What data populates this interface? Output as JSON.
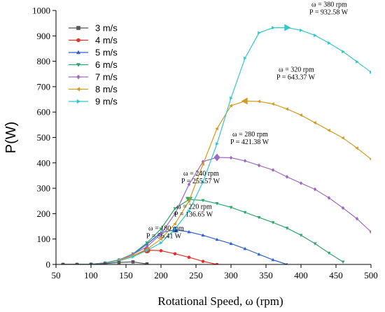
{
  "chart_data": {
    "type": "line",
    "xlabel": "Rotational Speed, ω (rpm)",
    "ylabel": "P(W)",
    "xlim": [
      50,
      500
    ],
    "ylim": [
      0,
      1000
    ],
    "xticks": [
      50,
      100,
      150,
      200,
      250,
      300,
      350,
      400,
      450,
      500
    ],
    "yticks": [
      0,
      100,
      200,
      300,
      400,
      500,
      600,
      700,
      800,
      900,
      1000
    ],
    "grid": false,
    "legend_position": "top-left",
    "series": [
      {
        "name": "3 m/s",
        "color": "#555555",
        "marker": "square",
        "x": [
          60,
          80,
          100,
          120,
          140,
          160,
          180
        ],
        "y": [
          0,
          0,
          0,
          3,
          8,
          10,
          2
        ]
      },
      {
        "name": "4 m/s",
        "color": "#e8302a",
        "marker": "circle",
        "x": [
          60,
          80,
          100,
          120,
          140,
          160,
          180,
          200,
          220,
          240,
          260,
          280
        ],
        "y": [
          0,
          0,
          1,
          5,
          15,
          35,
          56.41,
          54,
          42,
          28,
          12,
          0
        ]
      },
      {
        "name": "5 m/s",
        "color": "#2f63c7",
        "marker": "triangle-up",
        "x": [
          60,
          80,
          100,
          120,
          140,
          160,
          180,
          200,
          220,
          240,
          260,
          280,
          300,
          320,
          340,
          360,
          380
        ],
        "y": [
          0,
          0,
          1,
          6,
          18,
          40,
          80,
          125,
          136.65,
          128,
          115,
          98,
          82,
          62,
          40,
          18,
          0
        ]
      },
      {
        "name": "6 m/s",
        "color": "#2ea86a",
        "marker": "triangle-down",
        "x": [
          60,
          80,
          100,
          120,
          140,
          160,
          180,
          200,
          220,
          240,
          260,
          280,
          300,
          320,
          340,
          360,
          380,
          400,
          420,
          440,
          460
        ],
        "y": [
          0,
          0,
          1,
          6,
          18,
          42,
          85,
          140,
          220,
          255.57,
          252,
          240,
          225,
          205,
          185,
          165,
          143,
          115,
          82,
          45,
          10
        ]
      },
      {
        "name": "7 m/s",
        "color": "#9e6bc0",
        "marker": "diamond",
        "x": [
          60,
          80,
          100,
          120,
          140,
          160,
          180,
          200,
          220,
          240,
          260,
          280,
          300,
          320,
          340,
          360,
          380,
          400,
          420,
          440,
          460,
          480,
          500
        ],
        "y": [
          0,
          0,
          1,
          6,
          18,
          40,
          70,
          120,
          200,
          315,
          405,
          421.38,
          420,
          408,
          390,
          372,
          345,
          320,
          296,
          262,
          222,
          180,
          128
        ]
      },
      {
        "name": "8 m/s",
        "color": "#d69a1e",
        "marker": "triangle-left",
        "x": [
          60,
          80,
          100,
          120,
          140,
          160,
          180,
          200,
          220,
          240,
          260,
          280,
          300,
          320,
          340,
          360,
          380,
          400,
          420,
          440,
          460,
          480,
          500
        ],
        "y": [
          0,
          0,
          1,
          5,
          16,
          35,
          60,
          100,
          160,
          250,
          395,
          535,
          625,
          643.37,
          642,
          632,
          612,
          588,
          558,
          528,
          498,
          458,
          415
        ]
      },
      {
        "name": "9 m/s",
        "color": "#35c6c8",
        "marker": "triangle-right",
        "x": [
          60,
          80,
          100,
          120,
          140,
          160,
          180,
          200,
          220,
          240,
          260,
          280,
          300,
          320,
          340,
          360,
          380,
          400,
          420,
          440,
          460,
          480,
          500
        ],
        "y": [
          0,
          0,
          1,
          5,
          14,
          30,
          55,
          85,
          140,
          210,
          325,
          475,
          655,
          812,
          912,
          932,
          932.58,
          922,
          902,
          872,
          838,
          798,
          757
        ]
      }
    ],
    "annotations": [
      {
        "x": 180,
        "y": 56.41,
        "line1": "ω = 180 rpm",
        "line2": "P = 56.41 W"
      },
      {
        "x": 220,
        "y": 136.65,
        "line1": "ω = 220 rpm",
        "line2": "P = 136.65 W"
      },
      {
        "x": 240,
        "y": 255.57,
        "line1": "ω = 240 rpm",
        "line2": "P = 255.57 W"
      },
      {
        "x": 280,
        "y": 421.38,
        "line1": "ω = 280 rpm",
        "line2": "P = 421.38 W"
      },
      {
        "x": 320,
        "y": 643.37,
        "line1": "ω = 320 rpm",
        "line2": "P = 643.37 W"
      },
      {
        "x": 380,
        "y": 932.58,
        "line1": "ω = 380 rpm",
        "line2": "P = 932.58 W"
      }
    ]
  }
}
